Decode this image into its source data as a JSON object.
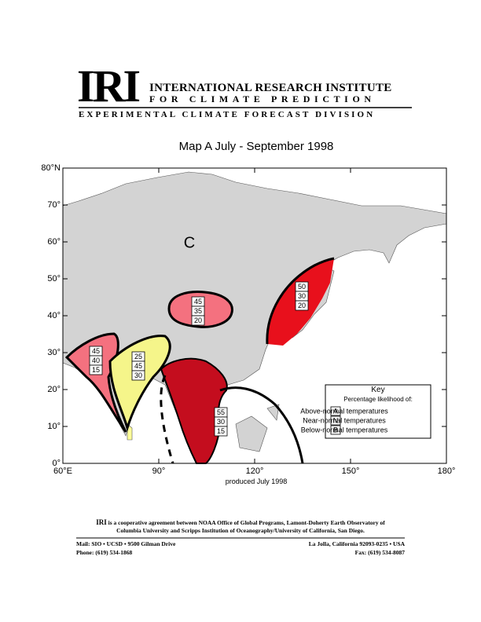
{
  "header": {
    "logo": "IRI",
    "line1": "INTERNATIONAL RESEARCH INSTITUTE",
    "line2": "FOR CLIMATE PREDICTION",
    "division": "EXPERIMENTAL CLIMATE FORECAST DIVISION"
  },
  "map": {
    "title": "Map A   July - September  1998",
    "xlim": [
      60,
      180
    ],
    "ylim": [
      0,
      80
    ],
    "xticks": [
      {
        "value": 60,
        "label": "60°E"
      },
      {
        "value": 90,
        "label": "90°"
      },
      {
        "value": 120,
        "label": "120°"
      },
      {
        "value": 150,
        "label": "150°"
      },
      {
        "value": 180,
        "label": "180°"
      }
    ],
    "yticks": [
      {
        "value": 0,
        "label": "0°"
      },
      {
        "value": 10,
        "label": "10°"
      },
      {
        "value": 20,
        "label": "20°"
      },
      {
        "value": 30,
        "label": "30°"
      },
      {
        "value": 40,
        "label": "40°"
      },
      {
        "value": 50,
        "label": "50°"
      },
      {
        "value": 60,
        "label": "60°"
      },
      {
        "value": 70,
        "label": "70°"
      },
      {
        "value": 80,
        "label": "80°N"
      }
    ],
    "climatology_label": "C",
    "regions": [
      {
        "name": "mongolia",
        "values": [
          45,
          35,
          20
        ]
      },
      {
        "name": "japan",
        "values": [
          50,
          30,
          20
        ]
      },
      {
        "name": "west-india",
        "values": [
          45,
          40,
          15
        ]
      },
      {
        "name": "india",
        "values": [
          25,
          45,
          30
        ]
      },
      {
        "name": "indochina",
        "values": [
          55,
          30,
          15
        ]
      }
    ],
    "key": {
      "title": "Key",
      "subtitle": "Percentage likelihood of:",
      "entries": [
        {
          "letter": "A",
          "text": "Above-normal temperatures"
        },
        {
          "letter": "N",
          "text": "Near-normal temperatures"
        },
        {
          "letter": "B",
          "text": "Below-normal temperatures"
        }
      ]
    },
    "credit": "produced July  1998"
  },
  "footer": {
    "lead": "IRI",
    "text": " is a cooperative agreement between NOAA Office of Global Programs, Lamont-Doherty Earth Observatory of",
    "text2": "Columbia University and Scripps Institution of Oceanography/University of California, San Diego.",
    "mail": "Mail: SIO • UCSD • 9500 Gilman Drive",
    "phone": "Phone: (619) 534-1868",
    "city": "La Jolla, California 92093-0235 • USA",
    "fax": "Fax: (619) 534-8087"
  }
}
